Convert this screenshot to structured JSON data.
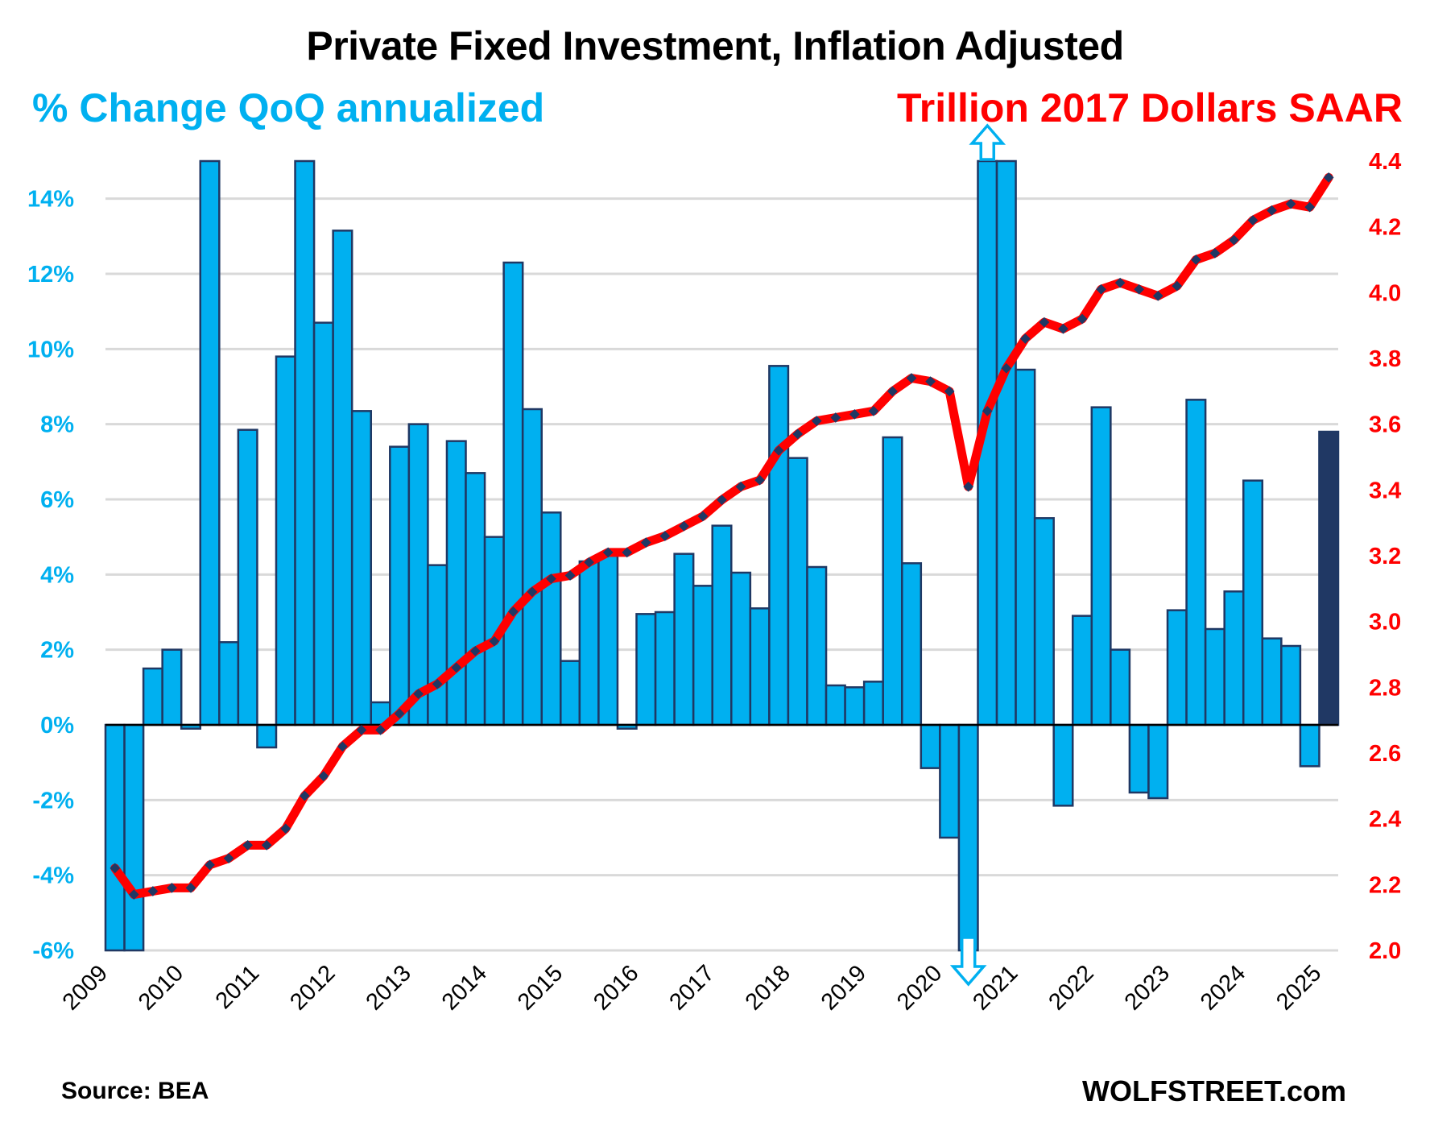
{
  "chart_data": {
    "type": "bar+line",
    "title": "Private Fixed Investment, Inflation Adjusted",
    "left_axis_label": "% Change QoQ annualized",
    "right_axis_label": "Trillion 2017 Dollars SAAR",
    "source": "Source: BEA",
    "brand": "WOLFSTREET.com",
    "colors": {
      "bar": "#00b0f0",
      "bar_edge": "#1f3864",
      "bar_latest": "#203864",
      "line": "#ff0000",
      "marker": "#1f3864",
      "grid": "#d9d9d9",
      "left_axis_text": "#00b0f0",
      "right_axis_text": "#ff0000"
    },
    "x_tick_labels": [
      "2009",
      "2010",
      "2011",
      "2012",
      "2013",
      "2014",
      "2015",
      "2016",
      "2017",
      "2018",
      "2019",
      "2020",
      "2021",
      "2022",
      "2023",
      "2024",
      "2025"
    ],
    "left_ylim": [
      -6,
      15
    ],
    "left_ticks": [
      -6,
      -4,
      -2,
      0,
      2,
      4,
      6,
      8,
      10,
      12,
      14
    ],
    "left_tick_labels": [
      "-6%",
      "-4%",
      "-2%",
      "0%",
      "2%",
      "4%",
      "6%",
      "8%",
      "10%",
      "12%",
      "14%"
    ],
    "right_ylim": [
      2.0,
      4.4
    ],
    "right_ticks": [
      2.0,
      2.2,
      2.4,
      2.6,
      2.8,
      3.0,
      3.2,
      3.4,
      3.6,
      3.8,
      4.0,
      4.2,
      4.4
    ],
    "right_tick_labels": [
      "2.0",
      "2.2",
      "2.4",
      "2.6",
      "2.8",
      "3.0",
      "3.2",
      "3.4",
      "3.6",
      "3.8",
      "4.0",
      "4.2",
      "4.4"
    ],
    "grid": true,
    "annotations": [
      "up-arrow: 2020 Q3 bar exceeds top of axis",
      "down-arrow: 2020 Q2 bar exceeds bottom of axis"
    ],
    "quarters": [
      "2009Q1",
      "2009Q2",
      "2009Q3",
      "2009Q4",
      "2010Q1",
      "2010Q2",
      "2010Q3",
      "2010Q4",
      "2011Q1",
      "2011Q2",
      "2011Q3",
      "2011Q4",
      "2012Q1",
      "2012Q2",
      "2012Q3",
      "2012Q4",
      "2013Q1",
      "2013Q2",
      "2013Q3",
      "2013Q4",
      "2014Q1",
      "2014Q2",
      "2014Q3",
      "2014Q4",
      "2015Q1",
      "2015Q2",
      "2015Q3",
      "2015Q4",
      "2016Q1",
      "2016Q2",
      "2016Q3",
      "2016Q4",
      "2017Q1",
      "2017Q2",
      "2017Q3",
      "2017Q4",
      "2018Q1",
      "2018Q2",
      "2018Q3",
      "2018Q4",
      "2019Q1",
      "2019Q2",
      "2019Q3",
      "2019Q4",
      "2020Q1",
      "2020Q2",
      "2020Q3",
      "2020Q4",
      "2021Q1",
      "2021Q2",
      "2021Q3",
      "2021Q4",
      "2022Q1",
      "2022Q2",
      "2022Q3",
      "2022Q4",
      "2023Q1",
      "2023Q2",
      "2023Q3",
      "2023Q4",
      "2024Q1",
      "2024Q2",
      "2024Q3",
      "2024Q4",
      "2025Q1"
    ],
    "series": [
      {
        "name": "% Change QoQ annualized",
        "type": "bar",
        "axis": "left",
        "note": "values beyond axis limits are clipped in the figure",
        "values": [
          -6.0,
          -6.0,
          1.5,
          2.0,
          -0.1,
          15.0,
          2.2,
          7.85,
          -0.6,
          9.8,
          15.0,
          10.7,
          13.15,
          8.35,
          0.6,
          7.4,
          8.0,
          4.25,
          7.55,
          6.7,
          5.0,
          12.3,
          8.4,
          5.65,
          1.7,
          4.35,
          4.5,
          -0.1,
          2.95,
          3.0,
          4.55,
          3.7,
          5.3,
          4.05,
          3.1,
          9.55,
          7.1,
          4.2,
          1.05,
          1.0,
          1.15,
          7.65,
          4.3,
          -1.15,
          -3.0,
          -6.0,
          15.0,
          15.0,
          9.45,
          5.5,
          -2.15,
          2.9,
          8.45,
          2.0,
          -1.8,
          -1.95,
          3.05,
          8.65,
          2.55,
          3.55,
          6.5,
          2.3,
          2.1,
          -1.1,
          7.8
        ]
      },
      {
        "name": "Trillion 2017 Dollars SAAR",
        "type": "line",
        "axis": "right",
        "values": [
          2.25,
          2.17,
          2.18,
          2.19,
          2.19,
          2.26,
          2.28,
          2.32,
          2.32,
          2.37,
          2.47,
          2.53,
          2.62,
          2.67,
          2.67,
          2.72,
          2.78,
          2.81,
          2.86,
          2.91,
          2.94,
          3.03,
          3.09,
          3.13,
          3.14,
          3.18,
          3.21,
          3.21,
          3.24,
          3.26,
          3.29,
          3.32,
          3.37,
          3.41,
          3.43,
          3.52,
          3.57,
          3.61,
          3.62,
          3.63,
          3.64,
          3.7,
          3.74,
          3.73,
          3.7,
          3.41,
          3.64,
          3.77,
          3.86,
          3.91,
          3.89,
          3.92,
          4.01,
          4.03,
          4.01,
          3.99,
          4.02,
          4.1,
          4.12,
          4.16,
          4.22,
          4.25,
          4.27,
          4.26,
          4.35
        ]
      }
    ]
  }
}
